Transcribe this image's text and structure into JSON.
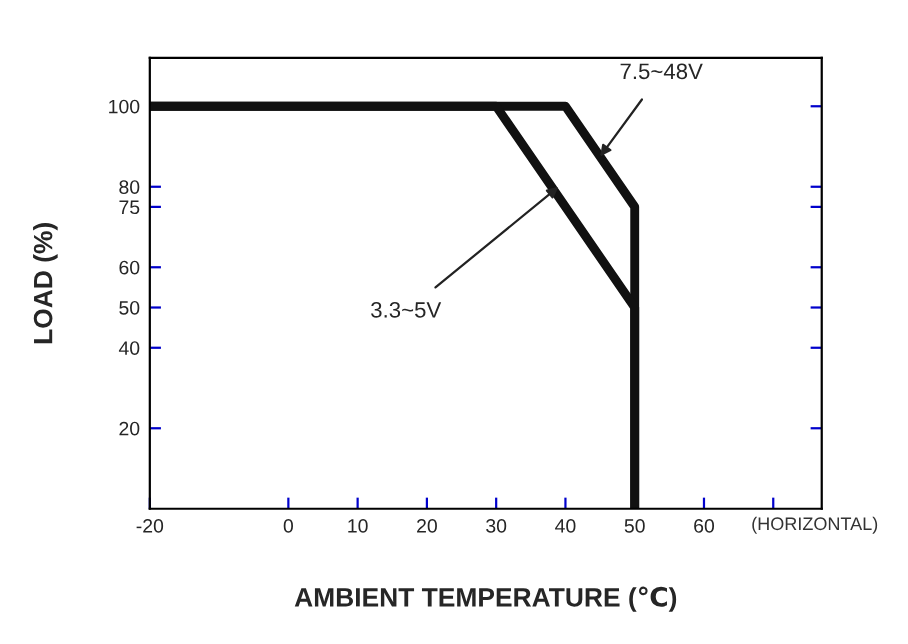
{
  "chart_data": {
    "type": "line",
    "xlabel": "AMBIENT TEMPERATURE (℃)",
    "ylabel": "LOAD (%)",
    "series": [
      {
        "color": "#111111",
        "x": [
          -20,
          40,
          50,
          50
        ],
        "values": [
          100,
          100,
          75,
          0
        ]
      },
      {
        "color": "#111111",
        "x": [
          -20,
          30,
          50,
          50
        ],
        "values": [
          100,
          100,
          50,
          0
        ]
      }
    ],
    "annotations": [
      {
        "text": "7.5~48V",
        "x": 45,
        "y": 87.5
      },
      {
        "text": "3.3~5V",
        "x": 39,
        "y": 80
      },
      "(HORIZONTAL)"
    ],
    "xlim": [
      -20,
      77
    ],
    "xticks": [
      -20,
      0,
      10,
      20,
      30,
      40,
      50,
      60,
      {
        "value": 70,
        "label": null
      }
    ],
    "ylim": [
      0,
      112
    ],
    "yticks": [
      20,
      40,
      50,
      60,
      75,
      80,
      100
    ],
    "grid": false,
    "marker": "none",
    "line_style": "solid",
    "tick_labels": "xy"
  }
}
